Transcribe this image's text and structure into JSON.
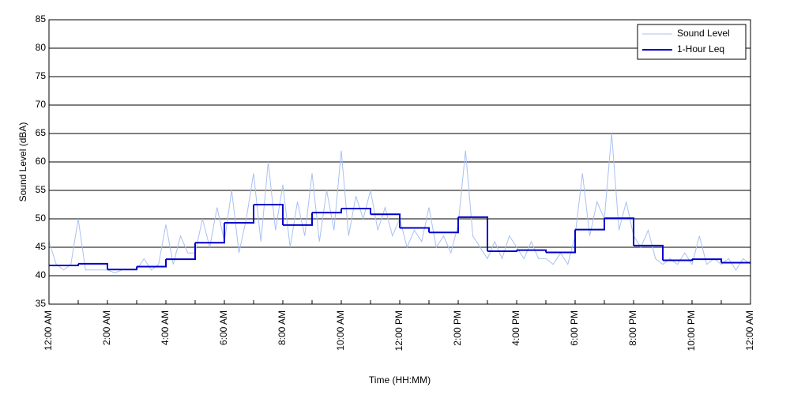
{
  "chart_data": {
    "type": "line",
    "x_label": "Time (HH:MM)",
    "y_label": "Sound Level (dBA)",
    "xlim": [
      0,
      24
    ],
    "ylim": [
      35,
      85
    ],
    "xticks": [
      {
        "value": 0,
        "label": "12:00 AM"
      },
      {
        "value": 2,
        "label": "2:00 AM"
      },
      {
        "value": 4,
        "label": "4:00 AM"
      },
      {
        "value": 6,
        "label": "6:00 AM"
      },
      {
        "value": 8,
        "label": "8:00 AM"
      },
      {
        "value": 10,
        "label": "10:00 AM"
      },
      {
        "value": 12,
        "label": "12:00 PM"
      },
      {
        "value": 14,
        "label": "2:00 PM"
      },
      {
        "value": 16,
        "label": "4:00 PM"
      },
      {
        "value": 18,
        "label": "6:00 PM"
      },
      {
        "value": 20,
        "label": "8:00 PM"
      },
      {
        "value": 22,
        "label": "10:00 PM"
      },
      {
        "value": 24,
        "label": "12:00 AM"
      }
    ],
    "xminorticks": [
      1,
      3,
      5,
      7,
      9,
      11,
      13,
      15,
      17,
      19,
      21,
      23
    ],
    "yticks": [
      35,
      40,
      45,
      50,
      55,
      60,
      65,
      70,
      75,
      80,
      85
    ],
    "grid": true,
    "legend": "top-right",
    "series": [
      {
        "name": "Sound Level",
        "color": "#a9c1f2",
        "style": "line",
        "x": [
          0,
          0.25,
          0.5,
          0.75,
          1,
          1.25,
          1.5,
          1.75,
          2,
          2.25,
          2.5,
          2.75,
          3,
          3.25,
          3.5,
          3.75,
          4,
          4.25,
          4.5,
          4.75,
          5,
          5.25,
          5.5,
          5.75,
          6,
          6.25,
          6.5,
          6.75,
          7,
          7.25,
          7.5,
          7.75,
          8,
          8.25,
          8.5,
          8.75,
          9,
          9.25,
          9.5,
          9.75,
          10,
          10.25,
          10.5,
          10.75,
          11,
          11.25,
          11.5,
          11.75,
          12,
          12.25,
          12.5,
          12.75,
          13,
          13.25,
          13.5,
          13.75,
          14,
          14.25,
          14.5,
          14.75,
          15,
          15.25,
          15.5,
          15.75,
          16,
          16.25,
          16.5,
          16.75,
          17,
          17.25,
          17.5,
          17.75,
          18,
          18.25,
          18.5,
          18.75,
          19,
          19.25,
          19.5,
          19.75,
          20,
          20.25,
          20.5,
          20.75,
          21,
          21.25,
          21.5,
          21.75,
          22,
          22.25,
          22.5,
          22.75,
          23,
          23.25,
          23.5,
          23.75,
          24
        ],
        "values": [
          46,
          42,
          41,
          42,
          50,
          41,
          41,
          41,
          41,
          40.5,
          41,
          41,
          41,
          43,
          41,
          42,
          49,
          42,
          47,
          44,
          44,
          50,
          45,
          52,
          46,
          55,
          44,
          50,
          58,
          46,
          60,
          48,
          56,
          45,
          53,
          47,
          58,
          46,
          55,
          48,
          62,
          47,
          54,
          50,
          55,
          48,
          52,
          47,
          50,
          45,
          48,
          46,
          52,
          45,
          47,
          44,
          49,
          62,
          47,
          45,
          43,
          46,
          43,
          47,
          45,
          43,
          46,
          43,
          43,
          42,
          44,
          42,
          47,
          58,
          47,
          53,
          50,
          65,
          48,
          53,
          47,
          45,
          48,
          43,
          42,
          43,
          42,
          44,
          42,
          47,
          42,
          43,
          42,
          43,
          41,
          43,
          42
        ]
      },
      {
        "name": "1-Hour Leq",
        "color": "#0000cc",
        "style": "step",
        "x": [
          0,
          1,
          2,
          3,
          4,
          5,
          6,
          7,
          8,
          9,
          10,
          11,
          12,
          13,
          14,
          15,
          16,
          17,
          18,
          19,
          20,
          21,
          22,
          23
        ],
        "values": [
          41.8,
          42.1,
          41.1,
          41.6,
          42.9,
          45.8,
          49.3,
          52.5,
          48.9,
          51.1,
          51.8,
          50.8,
          48.4,
          47.6,
          50.3,
          44.3,
          44.5,
          44.1,
          48.1,
          50.1,
          45.3,
          42.7,
          42.9,
          42.3
        ]
      }
    ]
  }
}
